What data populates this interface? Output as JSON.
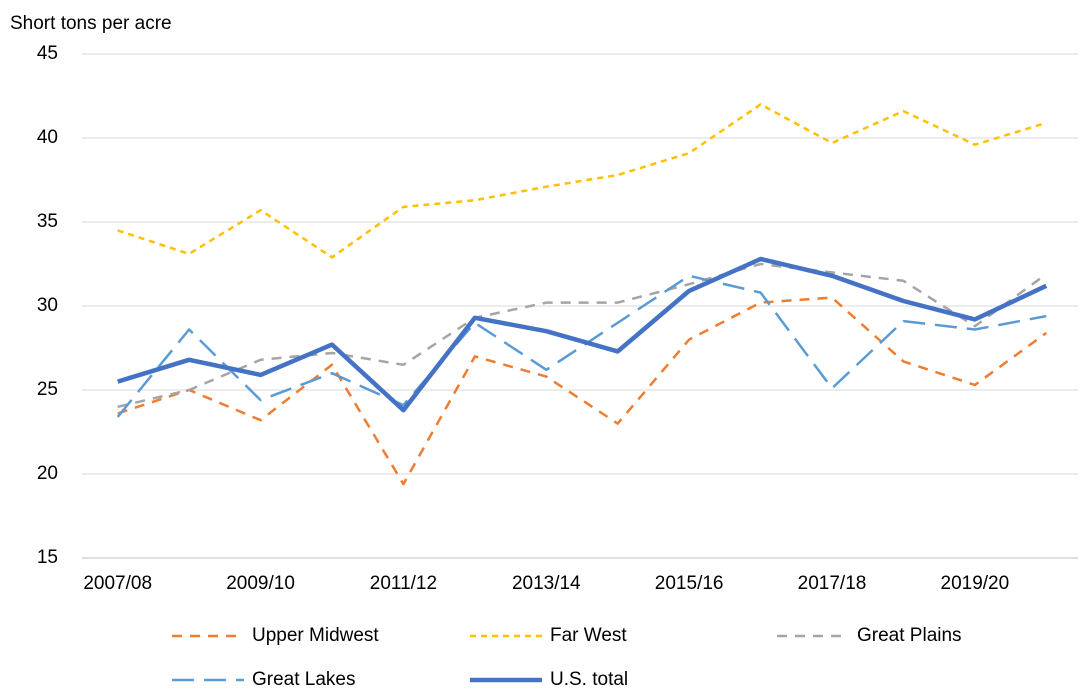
{
  "chart_data": {
    "type": "line",
    "y_label": "Short tons per acre",
    "categories": [
      "2007/08",
      null,
      "2009/10",
      null,
      "2011/12",
      null,
      "2013/14",
      null,
      "2015/16",
      null,
      "2017/18",
      null,
      "2019/20",
      null
    ],
    "ylim": [
      15,
      45
    ],
    "yticks": [
      15,
      20,
      25,
      30,
      35,
      40,
      45
    ],
    "grid": true,
    "series": [
      {
        "name": "Upper Midwest",
        "color": "#ed7d31",
        "values": [
          23.6,
          25.0,
          23.2,
          26.5,
          19.4,
          27.0,
          25.8,
          23.0,
          28.0,
          30.2,
          30.5,
          26.7,
          25.3,
          28.4
        ]
      },
      {
        "name": "Far West",
        "color": "#ffc000",
        "values": [
          34.5,
          33.1,
          35.7,
          32.9,
          35.9,
          36.3,
          37.1,
          37.8,
          39.1,
          42.0,
          39.7,
          41.6,
          39.6,
          40.9
        ]
      },
      {
        "name": "Great Plains",
        "color": "#a5a5a5",
        "values": [
          24.0,
          25.0,
          26.8,
          27.2,
          26.5,
          29.3,
          30.2,
          30.2,
          31.3,
          32.5,
          32.0,
          31.5,
          28.8,
          31.9
        ]
      },
      {
        "name": "Great Lakes",
        "color": "#5b9bd5",
        "values": [
          23.4,
          28.6,
          24.4,
          26.0,
          24.1,
          29.0,
          26.2,
          29.0,
          31.8,
          30.8,
          25.1,
          29.1,
          28.6,
          29.4
        ]
      },
      {
        "name": "U.S. total",
        "color": "#4472c4",
        "values": [
          25.5,
          26.8,
          25.9,
          27.7,
          23.8,
          29.3,
          28.5,
          27.3,
          30.9,
          32.8,
          31.8,
          30.3,
          29.2,
          31.2
        ]
      }
    ]
  }
}
